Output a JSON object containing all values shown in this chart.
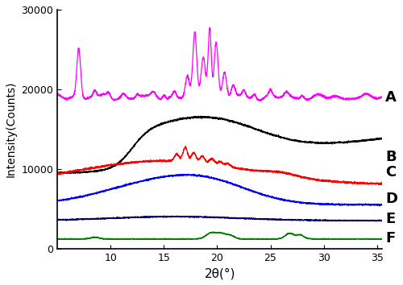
{
  "xlabel": "2θ(°)",
  "ylabel": "Intensity(Counts)",
  "xlim": [
    5,
    35.5
  ],
  "ylim": [
    0,
    30000
  ],
  "xticks": [
    10,
    15,
    20,
    25,
    30,
    35
  ],
  "yticks": [
    0,
    10000,
    20000,
    30000
  ],
  "labels": [
    "A",
    "B",
    "C",
    "D",
    "E",
    "F"
  ],
  "colors": [
    "#FF00FF",
    "#000000",
    "#FF0000",
    "#0000FF",
    "#000066",
    "#008000"
  ],
  "label_fontsize": 13,
  "figsize": [
    5.0,
    3.54
  ],
  "dpi": 100
}
